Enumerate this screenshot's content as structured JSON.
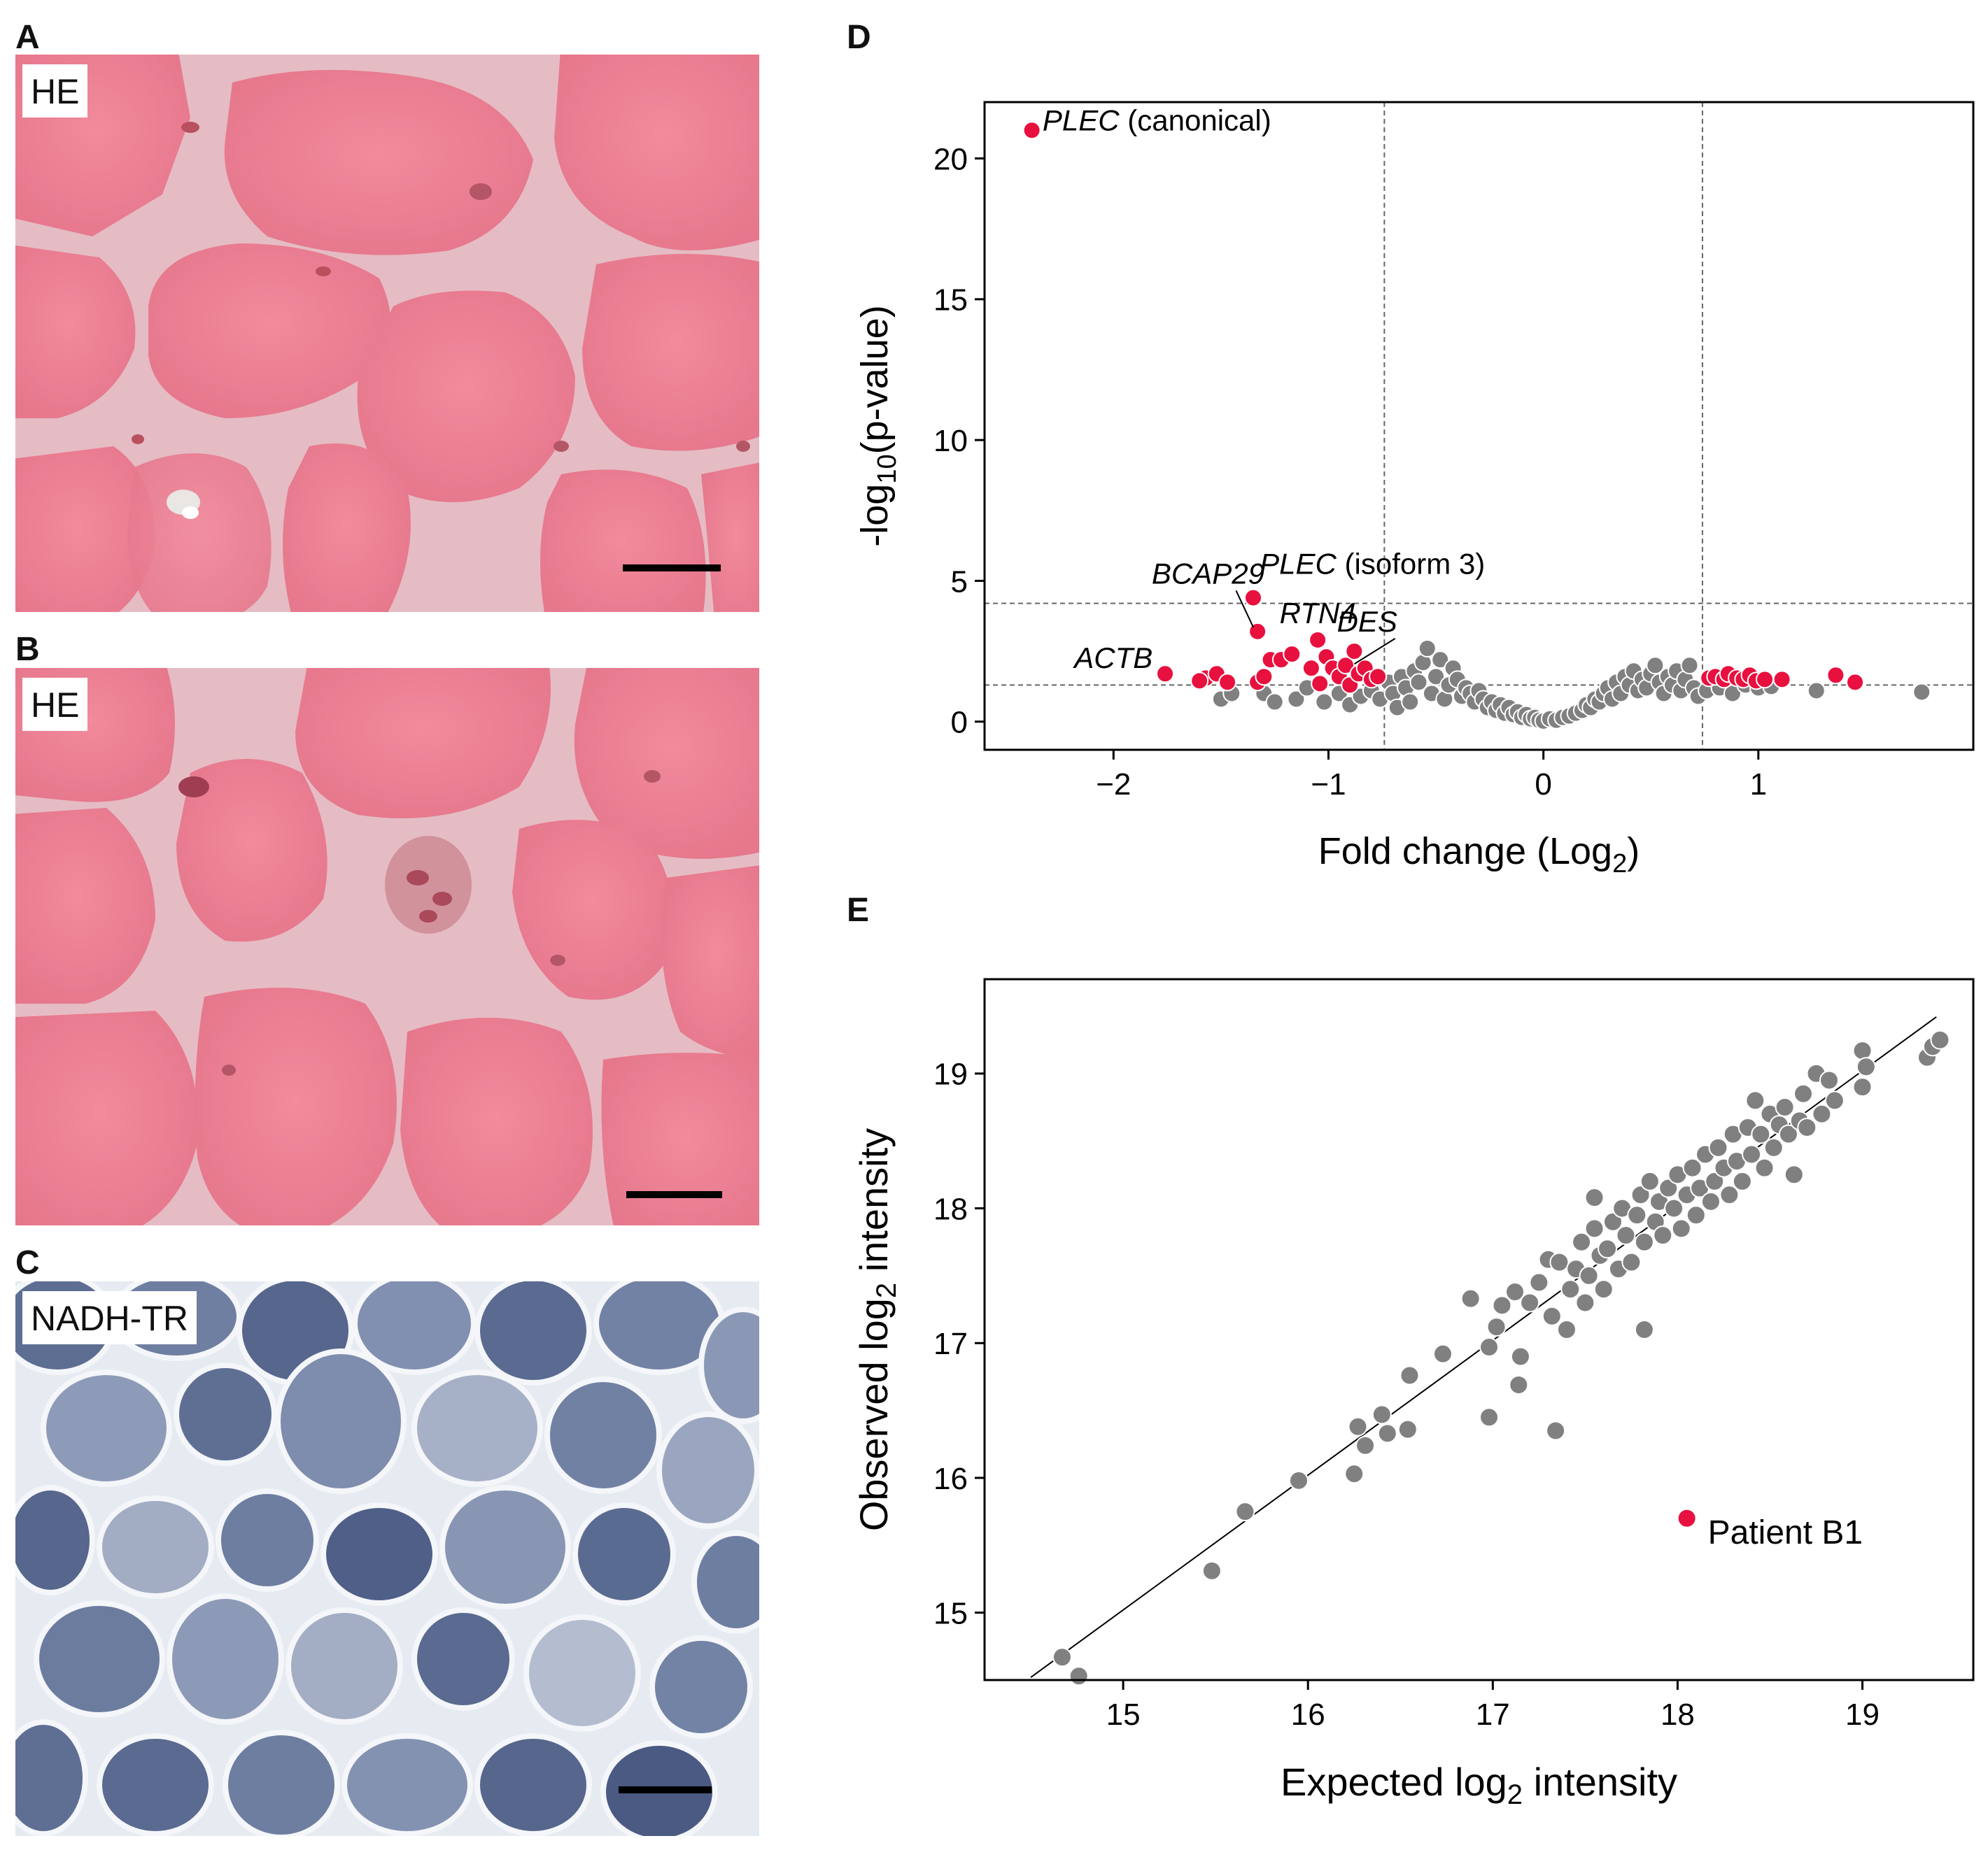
{
  "panels": {
    "A": {
      "letter": "A",
      "stain": "HE"
    },
    "B": {
      "letter": "B",
      "stain": "HE"
    },
    "C": {
      "letter": "C",
      "stain": "NADH-TR"
    },
    "D": {
      "letter": "D"
    },
    "E": {
      "letter": "E"
    }
  },
  "chart_data": [
    {
      "id": "D",
      "type": "scatter",
      "title": "",
      "xlabel": {
        "main": "Fold change (Log",
        "sub": "2",
        "suffix": ")"
      },
      "ylabel": {
        "main": "-log",
        "sub": "10",
        "suffix": "(p-value)"
      },
      "xlim": [
        -2.6,
        2.0
      ],
      "ylim": [
        -1.0,
        22.0
      ],
      "xticks": [
        {
          "value": -2,
          "label": "−2"
        },
        {
          "value": -1,
          "label": "−1"
        },
        {
          "value": 0,
          "label": "0"
        },
        {
          "value": 1,
          "label": "1"
        }
      ],
      "yticks": [
        {
          "value": 0,
          "label": "0"
        },
        {
          "value": 5,
          "label": "5"
        },
        {
          "value": 10,
          "label": "10"
        },
        {
          "value": 15,
          "label": "15"
        },
        {
          "value": 20,
          "label": "20"
        }
      ],
      "vlines": [
        -0.74,
        0.74
      ],
      "hlines": [
        4.2,
        1.3
      ],
      "colors": {
        "significant": "#e8103e",
        "nonsignificant": "#808080",
        "point_edge": "#ffffff",
        "reference_line": "#666666"
      },
      "significant_points": [
        [
          -2.38,
          21.0
        ],
        [
          -1.35,
          4.4
        ],
        [
          -1.33,
          3.2
        ],
        [
          -1.05,
          2.9
        ],
        [
          -1.76,
          1.7
        ],
        [
          -1.57,
          1.55
        ],
        [
          -1.6,
          1.45
        ],
        [
          -1.52,
          1.7
        ],
        [
          -1.47,
          1.4
        ],
        [
          -1.33,
          1.4
        ],
        [
          -1.3,
          1.6
        ],
        [
          -1.27,
          2.2
        ],
        [
          -1.22,
          2.2
        ],
        [
          -1.17,
          2.4
        ],
        [
          -1.08,
          1.9
        ],
        [
          -1.04,
          1.35
        ],
        [
          -1.01,
          2.3
        ],
        [
          -0.98,
          1.9
        ],
        [
          -0.95,
          1.6
        ],
        [
          -0.92,
          2.0
        ],
        [
          -0.9,
          1.3
        ],
        [
          -0.88,
          2.5
        ],
        [
          -0.86,
          1.7
        ],
        [
          -0.83,
          1.9
        ],
        [
          -0.8,
          1.5
        ],
        [
          -0.77,
          1.6
        ],
        [
          0.77,
          1.55
        ],
        [
          0.8,
          1.6
        ],
        [
          0.84,
          1.5
        ],
        [
          0.86,
          1.7
        ],
        [
          0.9,
          1.55
        ],
        [
          0.93,
          1.5
        ],
        [
          0.96,
          1.65
        ],
        [
          0.99,
          1.45
        ],
        [
          1.03,
          1.5
        ],
        [
          1.11,
          1.5
        ],
        [
          1.36,
          1.65
        ],
        [
          1.45,
          1.4
        ]
      ],
      "nonsignificant_points": [
        [
          -1.5,
          0.8
        ],
        [
          -1.45,
          1.0
        ],
        [
          -1.3,
          1.0
        ],
        [
          -1.25,
          0.7
        ],
        [
          -1.15,
          0.8
        ],
        [
          -1.1,
          1.2
        ],
        [
          -1.02,
          0.7
        ],
        [
          -0.95,
          1.0
        ],
        [
          -0.9,
          0.6
        ],
        [
          -0.85,
          0.9
        ],
        [
          -0.8,
          1.1
        ],
        [
          -0.76,
          0.8
        ],
        [
          -0.72,
          1.4
        ],
        [
          -0.7,
          1.0
        ],
        [
          -0.68,
          0.5
        ],
        [
          -0.66,
          1.6
        ],
        [
          -0.64,
          1.2
        ],
        [
          -0.62,
          0.7
        ],
        [
          -0.6,
          1.8
        ],
        [
          -0.58,
          1.4
        ],
        [
          -0.56,
          2.1
        ],
        [
          -0.54,
          2.6
        ],
        [
          -0.52,
          1.0
        ],
        [
          -0.5,
          1.6
        ],
        [
          -0.48,
          2.2
        ],
        [
          -0.46,
          0.8
        ],
        [
          -0.44,
          1.3
        ],
        [
          -0.42,
          1.9
        ],
        [
          -0.4,
          1.5
        ],
        [
          -0.38,
          0.9
        ],
        [
          -0.36,
          1.2
        ],
        [
          -0.34,
          1.0
        ],
        [
          -0.32,
          0.7
        ],
        [
          -0.3,
          1.1
        ],
        [
          -0.28,
          0.8
        ],
        [
          -0.26,
          0.5
        ],
        [
          -0.24,
          0.7
        ],
        [
          -0.22,
          0.4
        ],
        [
          -0.2,
          0.6
        ],
        [
          -0.18,
          0.3
        ],
        [
          -0.16,
          0.5
        ],
        [
          -0.14,
          0.25
        ],
        [
          -0.12,
          0.35
        ],
        [
          -0.1,
          0.15
        ],
        [
          -0.08,
          0.25
        ],
        [
          -0.06,
          0.1
        ],
        [
          -0.04,
          0.15
        ],
        [
          -0.02,
          0.05
        ],
        [
          0.0,
          0.02
        ],
        [
          0.03,
          0.1
        ],
        [
          0.06,
          0.05
        ],
        [
          0.09,
          0.15
        ],
        [
          0.12,
          0.2
        ],
        [
          0.15,
          0.3
        ],
        [
          0.18,
          0.4
        ],
        [
          0.2,
          0.6
        ],
        [
          0.22,
          0.5
        ],
        [
          0.24,
          0.8
        ],
        [
          0.26,
          0.7
        ],
        [
          0.28,
          1.0
        ],
        [
          0.3,
          1.2
        ],
        [
          0.32,
          0.8
        ],
        [
          0.34,
          1.4
        ],
        [
          0.36,
          1.0
        ],
        [
          0.38,
          1.6
        ],
        [
          0.4,
          1.3
        ],
        [
          0.42,
          1.8
        ],
        [
          0.44,
          1.1
        ],
        [
          0.46,
          1.5
        ],
        [
          0.48,
          1.2
        ],
        [
          0.5,
          1.7
        ],
        [
          0.52,
          2.0
        ],
        [
          0.54,
          1.4
        ],
        [
          0.56,
          1.0
        ],
        [
          0.58,
          1.6
        ],
        [
          0.6,
          1.3
        ],
        [
          0.62,
          1.8
        ],
        [
          0.64,
          1.1
        ],
        [
          0.66,
          1.5
        ],
        [
          0.68,
          2.0
        ],
        [
          0.7,
          1.2
        ],
        [
          0.72,
          0.9
        ],
        [
          0.76,
          1.1
        ],
        [
          0.82,
          1.2
        ],
        [
          0.88,
          1.0
        ],
        [
          0.94,
          1.3
        ],
        [
          1.0,
          1.2
        ],
        [
          1.06,
          1.25
        ],
        [
          1.27,
          1.1
        ],
        [
          1.76,
          1.05
        ]
      ],
      "annotations": [
        {
          "italic": "PLEC",
          "normal": " (canonical)",
          "point": [
            -2.38,
            21.0
          ],
          "text_x": -2.33,
          "text_y": 21.0,
          "anchor": "start",
          "leader": false
        },
        {
          "italic": "PLEC",
          "normal": " (isoform 3)",
          "point": [
            -1.35,
            4.4
          ],
          "text_x": -1.32,
          "text_y": 5.25,
          "anchor": "start",
          "leader": false
        },
        {
          "italic": "BCAP29",
          "normal": "",
          "point": [
            -1.33,
            3.2
          ],
          "text_x": -1.56,
          "text_y": 4.9,
          "anchor": "middle",
          "leader": true
        },
        {
          "italic": "RTN4",
          "normal": "",
          "point": [
            -1.05,
            2.9
          ],
          "text_x": -1.05,
          "text_y": 3.5,
          "anchor": "middle",
          "leader": false
        },
        {
          "italic": "DES",
          "normal": "",
          "point": [
            -0.86,
            1.9
          ],
          "text_x": -0.82,
          "text_y": 3.2,
          "anchor": "middle",
          "leader": true
        },
        {
          "italic": "ACTB",
          "normal": "",
          "point": [
            -1.76,
            1.7
          ],
          "text_x": -2.0,
          "text_y": 1.9,
          "anchor": "middle",
          "leader": false
        }
      ]
    },
    {
      "id": "E",
      "type": "scatter",
      "title": "",
      "xlabel": {
        "main": "Expected log",
        "sub": "2",
        "suffix": " intensity"
      },
      "ylabel": {
        "main": "Observed log",
        "sub": "2",
        "suffix": " intensity"
      },
      "xlim": [
        14.25,
        19.6
      ],
      "ylim": [
        14.5,
        19.7
      ],
      "xticks": [
        {
          "value": 15,
          "label": "15"
        },
        {
          "value": 16,
          "label": "16"
        },
        {
          "value": 17,
          "label": "17"
        },
        {
          "value": 18,
          "label": "18"
        },
        {
          "value": 19,
          "label": "19"
        }
      ],
      "yticks": [
        {
          "value": 15,
          "label": "15"
        },
        {
          "value": 16,
          "label": "16"
        },
        {
          "value": 17,
          "label": "17"
        },
        {
          "value": 18,
          "label": "18"
        },
        {
          "value": 19,
          "label": "19"
        }
      ],
      "regression_line": [
        [
          14.5,
          14.52
        ],
        [
          19.4,
          19.42
        ]
      ],
      "colors": {
        "highlight": "#e8103e",
        "points": "#808080",
        "point_edge": "#ffffff",
        "line": "#000000"
      },
      "highlight_point": {
        "x": 18.05,
        "y": 15.7,
        "label": "Patient B1"
      },
      "points": [
        [
          14.67,
          14.67
        ],
        [
          14.76,
          14.53
        ],
        [
          15.48,
          15.31
        ],
        [
          15.66,
          15.75
        ],
        [
          15.95,
          15.98
        ],
        [
          16.25,
          16.03
        ],
        [
          16.27,
          16.38
        ],
        [
          16.31,
          16.24
        ],
        [
          16.4,
          16.47
        ],
        [
          16.43,
          16.33
        ],
        [
          16.54,
          16.36
        ],
        [
          16.55,
          16.76
        ],
        [
          16.73,
          16.92
        ],
        [
          16.88,
          17.33
        ],
        [
          16.98,
          16.45
        ],
        [
          16.98,
          16.97
        ],
        [
          17.02,
          17.12
        ],
        [
          17.05,
          17.28
        ],
        [
          17.12,
          17.38
        ],
        [
          17.14,
          16.69
        ],
        [
          17.15,
          16.9
        ],
        [
          17.2,
          17.3
        ],
        [
          17.25,
          17.45
        ],
        [
          17.3,
          17.62
        ],
        [
          17.32,
          17.2
        ],
        [
          17.34,
          16.35
        ],
        [
          17.36,
          17.6
        ],
        [
          17.4,
          17.1
        ],
        [
          17.42,
          17.4
        ],
        [
          17.45,
          17.55
        ],
        [
          17.48,
          17.75
        ],
        [
          17.5,
          17.3
        ],
        [
          17.52,
          17.5
        ],
        [
          17.55,
          17.85
        ],
        [
          17.55,
          18.08
        ],
        [
          17.58,
          17.65
        ],
        [
          17.6,
          17.4
        ],
        [
          17.62,
          17.7
        ],
        [
          17.65,
          17.9
        ],
        [
          17.68,
          17.55
        ],
        [
          17.7,
          18.0
        ],
        [
          17.72,
          17.8
        ],
        [
          17.75,
          17.6
        ],
        [
          17.78,
          17.95
        ],
        [
          17.8,
          18.1
        ],
        [
          17.82,
          17.1
        ],
        [
          17.82,
          17.75
        ],
        [
          17.85,
          18.2
        ],
        [
          17.88,
          17.9
        ],
        [
          17.9,
          18.05
        ],
        [
          17.92,
          17.8
        ],
        [
          17.95,
          18.15
        ],
        [
          17.98,
          18.0
        ],
        [
          18.0,
          18.25
        ],
        [
          18.02,
          17.85
        ],
        [
          18.05,
          18.1
        ],
        [
          18.08,
          18.3
        ],
        [
          18.1,
          17.95
        ],
        [
          18.12,
          18.15
        ],
        [
          18.15,
          18.4
        ],
        [
          18.18,
          18.05
        ],
        [
          18.2,
          18.2
        ],
        [
          18.22,
          18.45
        ],
        [
          18.25,
          18.3
        ],
        [
          18.28,
          18.1
        ],
        [
          18.3,
          18.55
        ],
        [
          18.32,
          18.35
        ],
        [
          18.35,
          18.2
        ],
        [
          18.38,
          18.6
        ],
        [
          18.4,
          18.4
        ],
        [
          18.42,
          18.8
        ],
        [
          18.45,
          18.55
        ],
        [
          18.47,
          18.3
        ],
        [
          18.5,
          18.7
        ],
        [
          18.52,
          18.45
        ],
        [
          18.55,
          18.62
        ],
        [
          18.58,
          18.75
        ],
        [
          18.6,
          18.55
        ],
        [
          18.63,
          18.25
        ],
        [
          18.66,
          18.65
        ],
        [
          18.68,
          18.85
        ],
        [
          18.7,
          18.6
        ],
        [
          18.75,
          19.0
        ],
        [
          18.78,
          18.7
        ],
        [
          18.82,
          18.95
        ],
        [
          18.85,
          18.8
        ],
        [
          19.0,
          18.9
        ],
        [
          19.0,
          19.17
        ],
        [
          19.02,
          19.05
        ],
        [
          19.35,
          19.12
        ],
        [
          19.38,
          19.2
        ],
        [
          19.42,
          19.25
        ]
      ]
    }
  ]
}
